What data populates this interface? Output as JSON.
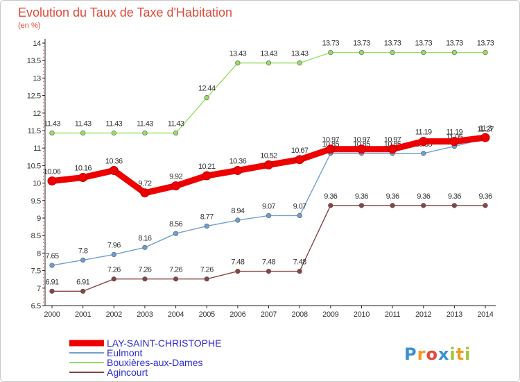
{
  "chart_data": {
    "type": "line",
    "title": "Evolution du Taux de Taxe d'Habitation",
    "subtitle": "(en %)",
    "x": [
      2000,
      2001,
      2002,
      2003,
      2004,
      2005,
      2006,
      2007,
      2008,
      2009,
      2010,
      2011,
      2012,
      2013,
      2014
    ],
    "ylim": [
      6.5,
      14
    ],
    "yticks": [
      6.5,
      7,
      7.5,
      8,
      8.5,
      9,
      9.5,
      10,
      10.5,
      11,
      11.5,
      12,
      12.5,
      13,
      13.5,
      14
    ],
    "series": [
      {
        "name": "LAY-SAINT-CHRISTOPHE",
        "color": "#ee0000",
        "values": [
          10.06,
          10.16,
          10.36,
          9.72,
          9.92,
          10.21,
          10.36,
          10.52,
          10.67,
          10.97,
          10.97,
          10.97,
          11.19,
          11.19,
          11.3
        ],
        "labels": [
          "10.06",
          "10.16",
          "10.36",
          "9.72",
          "9.92",
          "10.21",
          "10.36",
          "10.52",
          "10.67",
          "10.97",
          "10.97",
          "10.97",
          "11.19",
          "11.19",
          "11.3"
        ]
      },
      {
        "name": "Eulmont",
        "color": "#6f9fcf",
        "values": [
          7.65,
          7.8,
          7.96,
          8.16,
          8.56,
          8.77,
          8.94,
          9.07,
          9.07,
          10.85,
          10.85,
          10.85,
          10.85,
          11.05,
          11.27
        ],
        "labels": [
          "7.65",
          "7.8",
          "7.96",
          "8.16",
          "8.56",
          "8.77",
          "8.94",
          "9.07",
          "9.07",
          "10.85",
          "10.85",
          "10.85",
          "10.85",
          "11.05",
          "11.27"
        ]
      },
      {
        "name": "Bouxières-aux-Dames",
        "color": "#99dd66",
        "values": [
          11.43,
          11.43,
          11.43,
          11.43,
          11.43,
          12.44,
          13.43,
          13.43,
          13.43,
          13.73,
          13.73,
          13.73,
          13.73,
          13.73,
          13.73
        ],
        "labels": [
          "11.43",
          "11.43",
          "11.43",
          "11.43",
          "11.43",
          "12.44",
          "13.43",
          "13.43",
          "13.43",
          "13.73",
          "13.73",
          "13.73",
          "13.73",
          "13.73",
          "13.73"
        ]
      },
      {
        "name": "Agincourt",
        "color": "#884444",
        "values": [
          6.91,
          6.91,
          7.26,
          7.26,
          7.26,
          7.26,
          7.48,
          7.48,
          7.48,
          9.36,
          9.36,
          9.36,
          9.36,
          9.36,
          9.36
        ],
        "labels": [
          "6.91",
          "6.91",
          "7.26",
          "7.26",
          "7.26",
          "7.26",
          "7.48",
          "7.48",
          "7.48",
          "9.36",
          "9.36",
          "9.36",
          "9.36",
          "9.36",
          "9.36"
        ]
      }
    ],
    "legend_placement": "bottom-left"
  },
  "brand": {
    "logo_text": "Proxiti",
    "logo_letters": [
      "P",
      "r",
      "o",
      "x",
      "i",
      "t",
      "i"
    ],
    "logo_colors": [
      "#3b8fd6",
      "#f39a1e",
      "#e8463c",
      "#3b8fd6",
      "#9fc33a",
      "#f39a1e",
      "#9fc33a"
    ]
  }
}
